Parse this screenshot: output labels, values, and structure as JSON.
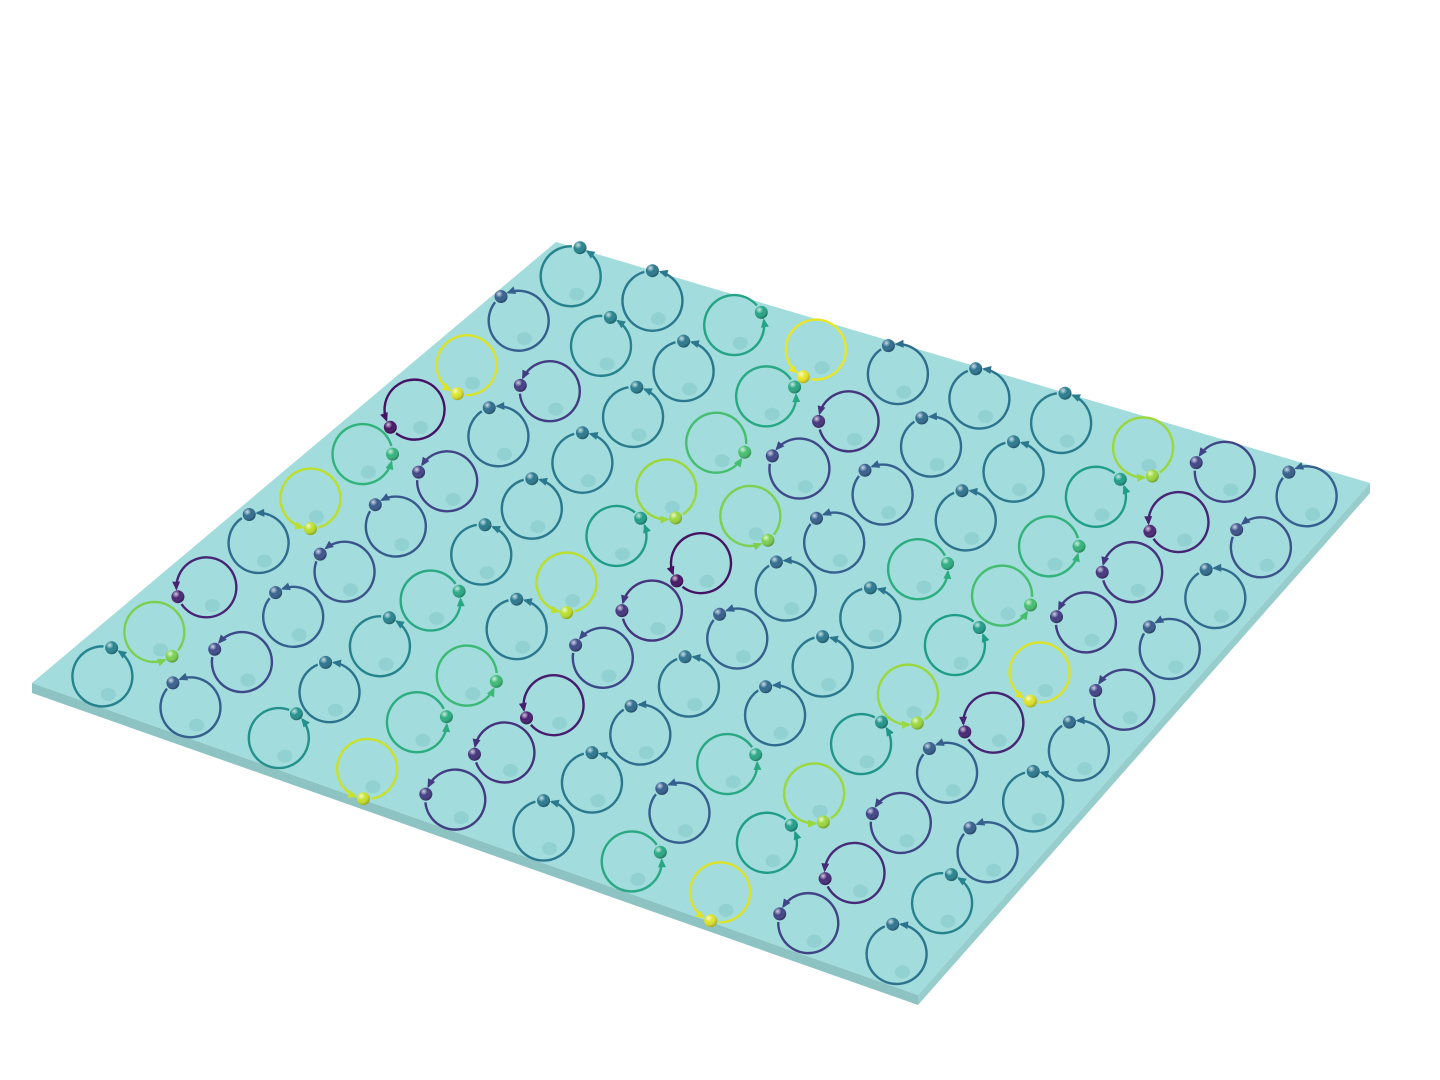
{
  "scene": {
    "description_free": true,
    "slab_color": "#a2dcdc",
    "slab_edge_color": "#8ec3c3",
    "hole_color": "#8ccccc",
    "grid_cols": 10,
    "grid_rows": 10,
    "colormap": "viridis"
  },
  "lattice": {
    "phase_levels": [
      [
        0.45,
        0.4,
        0.58,
        0.97,
        0.35,
        0.38,
        0.42,
        0.85,
        0.2,
        0.3
      ],
      [
        0.3,
        0.45,
        0.4,
        0.6,
        0.15,
        0.35,
        0.4,
        0.55,
        0.1,
        0.25
      ],
      [
        0.95,
        0.18,
        0.42,
        0.7,
        0.22,
        0.3,
        0.38,
        0.65,
        0.15,
        0.35
      ],
      [
        0.05,
        0.35,
        0.4,
        0.85,
        0.8,
        0.3,
        0.62,
        0.7,
        0.18,
        0.28
      ],
      [
        0.65,
        0.2,
        0.4,
        0.55,
        0.05,
        0.35,
        0.4,
        0.55,
        0.95,
        0.2
      ],
      [
        0.9,
        0.28,
        0.42,
        0.9,
        0.15,
        0.3,
        0.4,
        0.85,
        0.1,
        0.35
      ],
      [
        0.35,
        0.25,
        0.6,
        0.4,
        0.22,
        0.38,
        0.35,
        0.52,
        0.3,
        0.4
      ],
      [
        0.1,
        0.3,
        0.45,
        0.68,
        0.08,
        0.35,
        0.6,
        0.85,
        0.2,
        0.3
      ],
      [
        0.8,
        0.22,
        0.38,
        0.62,
        0.14,
        0.4,
        0.3,
        0.55,
        0.12,
        0.45
      ],
      [
        0.45,
        0.3,
        0.5,
        0.92,
        0.18,
        0.4,
        0.6,
        0.95,
        0.2,
        0.38
      ]
    ]
  }
}
